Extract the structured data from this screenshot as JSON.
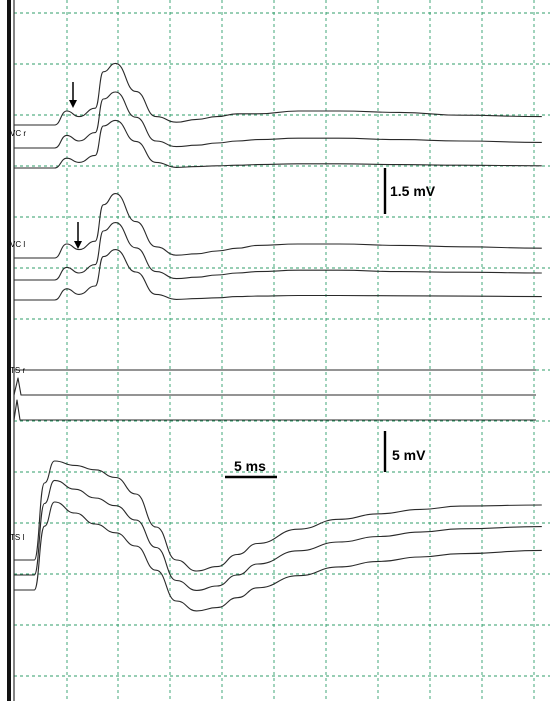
{
  "chart_data": {
    "type": "line",
    "title": "",
    "grid": true,
    "channel_labels": {
      "vc_r": "VC r",
      "vc_l": "VC l",
      "ts_r": "TS r",
      "ts_l": "TS l"
    },
    "scale_bars": {
      "vc_voltage": "1.5 mV",
      "ts_voltage": "5 mV",
      "time": "5 ms"
    },
    "annotations": [
      "arrow marking early deflection (VC r)",
      "arrow marking early deflection (VC l)"
    ],
    "x_axis": {
      "unit": "ms",
      "range": [
        0,
        26
      ]
    },
    "series": [
      {
        "group": "vc_r",
        "trace": 1,
        "x": [
          0,
          1,
          2,
          2.6,
          3.2,
          4,
          4.4,
          5,
          6,
          7,
          8,
          9,
          10,
          11,
          12,
          14,
          16,
          19,
          22,
          26
        ],
        "y": [
          0,
          0,
          0,
          0.5,
          0.3,
          0.6,
          1.9,
          2.2,
          1.2,
          0.3,
          0.1,
          0.2,
          0.3,
          0.4,
          0.4,
          0.5,
          0.5,
          0.45,
          0.35,
          0.3
        ]
      },
      {
        "group": "vc_r",
        "trace": 2,
        "x": [
          0,
          1,
          2,
          2.6,
          3.2,
          4,
          4.4,
          5,
          6,
          7,
          8,
          9,
          10,
          11,
          12,
          14,
          16,
          19,
          22,
          26
        ],
        "y": [
          0,
          0,
          0,
          0.45,
          0.25,
          0.55,
          1.75,
          2.0,
          1.1,
          0.25,
          0.05,
          0.1,
          0.18,
          0.25,
          0.3,
          0.35,
          0.35,
          0.3,
          0.25,
          0.2
        ]
      },
      {
        "group": "vc_r",
        "trace": 3,
        "x": [
          0,
          1,
          2,
          2.6,
          3.2,
          4,
          4.4,
          5,
          6,
          7,
          8,
          9,
          10,
          11,
          12,
          14,
          16,
          19,
          22,
          26
        ],
        "y": [
          0,
          0,
          0,
          0.35,
          0.2,
          0.45,
          1.5,
          1.7,
          0.95,
          0.2,
          0.02,
          0.05,
          0.08,
          0.1,
          0.12,
          0.15,
          0.15,
          0.12,
          0.1,
          0.08
        ]
      },
      {
        "group": "vc_l",
        "trace": 1,
        "x": [
          0,
          1,
          2,
          2.6,
          3.2,
          4,
          4.4,
          5,
          6,
          7,
          8,
          9,
          10,
          11,
          12,
          14,
          16,
          19,
          22,
          26
        ],
        "y": [
          0,
          0,
          0,
          0.5,
          0.3,
          0.6,
          1.9,
          2.3,
          1.3,
          0.4,
          0.1,
          0.15,
          0.25,
          0.35,
          0.45,
          0.5,
          0.5,
          0.45,
          0.4,
          0.35
        ]
      },
      {
        "group": "vc_l",
        "trace": 2,
        "x": [
          0,
          1,
          2,
          2.6,
          3.2,
          4,
          4.4,
          5,
          6,
          7,
          8,
          9,
          10,
          11,
          12,
          14,
          16,
          19,
          22,
          26
        ],
        "y": [
          0,
          0,
          0,
          0.45,
          0.25,
          0.55,
          1.75,
          2.05,
          1.15,
          0.3,
          0.05,
          0.1,
          0.18,
          0.25,
          0.3,
          0.35,
          0.35,
          0.3,
          0.28,
          0.25
        ]
      },
      {
        "group": "vc_l",
        "trace": 3,
        "x": [
          0,
          1,
          2,
          2.6,
          3.2,
          4,
          4.4,
          5,
          6,
          7,
          8,
          9,
          10,
          11,
          12,
          14,
          16,
          19,
          22,
          26
        ],
        "y": [
          0,
          0,
          0,
          0.4,
          0.2,
          0.5,
          1.55,
          1.8,
          1.0,
          0.2,
          0.02,
          0.05,
          0.08,
          0.12,
          0.14,
          0.16,
          0.16,
          0.15,
          0.14,
          0.12
        ]
      },
      {
        "group": "ts_l",
        "trace": 1,
        "x": [
          0,
          0.5,
          1,
          1.5,
          2,
          3,
          4,
          5,
          6,
          7,
          8,
          9,
          10,
          11,
          12,
          14,
          16,
          18,
          20,
          22,
          26
        ],
        "y": [
          0,
          0,
          0,
          7,
          9,
          8.6,
          8.2,
          7.5,
          6,
          3,
          0,
          -1,
          -0.6,
          0.5,
          1.5,
          2.8,
          3.7,
          4.2,
          4.6,
          4.9,
          5.0
        ]
      },
      {
        "group": "ts_l",
        "trace": 2,
        "x": [
          0,
          0.5,
          1,
          1.5,
          2,
          3,
          4,
          5,
          6,
          7,
          8,
          9,
          10,
          11,
          12,
          14,
          16,
          18,
          20,
          22,
          26
        ],
        "y": [
          0,
          0,
          0,
          6.5,
          8.6,
          7.8,
          7.0,
          6.3,
          5,
          2.5,
          -0.5,
          -1.4,
          -1.0,
          0,
          1,
          2.2,
          3.0,
          3.5,
          3.9,
          4.2,
          4.4
        ]
      },
      {
        "group": "ts_l",
        "trace": 3,
        "x": [
          0,
          0.5,
          1,
          1.5,
          2,
          3,
          4,
          5,
          6,
          7,
          8,
          9,
          10,
          11,
          12,
          14,
          16,
          18,
          20,
          22,
          26
        ],
        "y": [
          0,
          0,
          0,
          5.8,
          8.0,
          7.0,
          6.0,
          5.2,
          4,
          1.8,
          -1,
          -1.9,
          -1.6,
          -0.7,
          0.2,
          1.3,
          2.1,
          2.6,
          3.0,
          3.3,
          3.6
        ]
      }
    ]
  }
}
